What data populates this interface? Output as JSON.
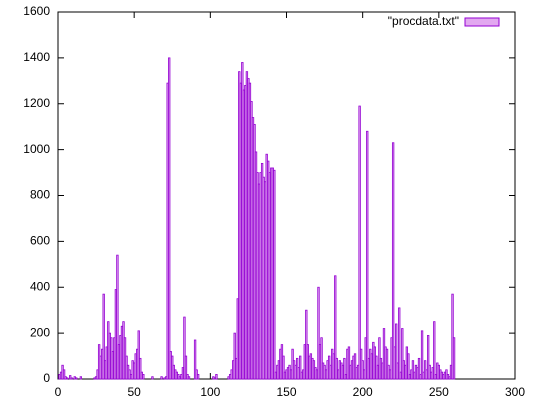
{
  "chart_data": {
    "type": "bar",
    "series": [
      {
        "name": "\"procdata.txt\"",
        "color": "#9400d3",
        "fill": "#e2a8f0",
        "x": [
          1,
          2,
          3,
          4,
          5,
          6,
          7,
          8,
          9,
          10,
          11,
          12,
          13,
          14,
          15,
          16,
          17,
          18,
          19,
          20,
          21,
          22,
          23,
          24,
          25,
          26,
          27,
          28,
          29,
          30,
          31,
          32,
          33,
          34,
          35,
          36,
          37,
          38,
          39,
          40,
          41,
          42,
          43,
          44,
          45,
          46,
          47,
          48,
          49,
          50,
          51,
          52,
          53,
          54,
          55,
          56,
          57,
          58,
          59,
          60,
          61,
          62,
          63,
          64,
          65,
          66,
          67,
          68,
          69,
          70,
          71,
          72,
          73,
          74,
          75,
          76,
          77,
          78,
          79,
          80,
          81,
          82,
          83,
          84,
          85,
          86,
          87,
          88,
          89,
          90,
          91,
          92,
          93,
          94,
          95,
          96,
          97,
          98,
          99,
          100,
          101,
          102,
          103,
          104,
          105,
          106,
          107,
          108,
          109,
          110,
          111,
          112,
          113,
          114,
          115,
          116,
          117,
          118,
          119,
          120,
          121,
          122,
          123,
          124,
          125,
          126,
          127,
          128,
          129,
          130,
          131,
          132,
          133,
          134,
          135,
          136,
          137,
          138,
          139,
          140,
          141,
          142,
          143,
          144,
          145,
          146,
          147,
          148,
          149,
          150,
          151,
          152,
          153,
          154,
          155,
          156,
          157,
          158,
          159,
          160,
          161,
          162,
          163,
          164,
          165,
          166,
          167,
          168,
          169,
          170,
          171,
          172,
          173,
          174,
          175,
          176,
          177,
          178,
          179,
          180,
          181,
          182,
          183,
          184,
          185,
          186,
          187,
          188,
          189,
          190,
          191,
          192,
          193,
          194,
          195,
          196,
          197,
          198,
          199,
          200,
          201,
          202,
          203,
          204,
          205,
          206,
          207,
          208,
          209,
          210,
          211,
          212,
          213,
          214,
          215,
          216,
          217,
          218,
          219,
          220,
          221,
          222,
          223,
          224,
          225,
          226,
          227,
          228,
          229,
          230,
          231,
          232,
          233,
          234,
          235,
          236,
          237,
          238,
          239,
          240,
          241,
          242,
          243,
          244,
          245,
          246,
          247,
          248,
          249,
          250,
          251,
          252,
          253,
          254,
          255,
          256,
          257,
          258,
          259,
          260
        ],
        "values": [
          20,
          30,
          60,
          40,
          10,
          5,
          0,
          15,
          5,
          0,
          10,
          5,
          0,
          0,
          10,
          0,
          0,
          0,
          0,
          0,
          0,
          0,
          0,
          5,
          10,
          40,
          150,
          100,
          130,
          370,
          80,
          140,
          250,
          200,
          180,
          120,
          180,
          390,
          540,
          150,
          190,
          230,
          250,
          180,
          100,
          60,
          40,
          20,
          80,
          70,
          110,
          130,
          210,
          90,
          30,
          20,
          0,
          0,
          0,
          0,
          0,
          10,
          0,
          0,
          0,
          0,
          0,
          10,
          0,
          5,
          10,
          1290,
          1400,
          120,
          100,
          60,
          40,
          30,
          20,
          10,
          20,
          50,
          270,
          100,
          20,
          10,
          0,
          0,
          0,
          170,
          40,
          20,
          0,
          0,
          0,
          0,
          0,
          0,
          0,
          0,
          0,
          10,
          5,
          20,
          0,
          0,
          0,
          0,
          0,
          0,
          0,
          10,
          20,
          40,
          80,
          200,
          90,
          350,
          1340,
          1290,
          1380,
          1260,
          1280,
          1340,
          1310,
          1290,
          1210,
          1140,
          1110,
          990,
          900,
          850,
          900,
          940,
          880,
          860,
          980,
          950,
          900,
          920,
          920,
          910,
          30,
          60,
          80,
          130,
          150,
          100,
          30,
          40,
          50,
          60,
          40,
          130,
          80,
          60,
          90,
          50,
          100,
          30,
          40,
          150,
          300,
          150,
          100,
          110,
          90,
          80,
          50,
          40,
          400,
          150,
          180,
          70,
          60,
          40,
          80,
          100,
          60,
          130,
          110,
          450,
          90,
          40,
          80,
          70,
          60,
          90,
          20,
          130,
          140,
          60,
          80,
          100,
          110,
          50,
          60,
          1190,
          130,
          80,
          40,
          180,
          1080,
          90,
          130,
          110,
          160,
          140,
          100,
          60,
          180,
          90,
          70,
          220,
          140,
          130,
          60,
          40,
          180,
          1030,
          140,
          240,
          70,
          310,
          30,
          220,
          80,
          60,
          140,
          110,
          20,
          40,
          80,
          30,
          60,
          50,
          90,
          20,
          210,
          30,
          80,
          40,
          190,
          60,
          30,
          50,
          250,
          20,
          70,
          60,
          40,
          30,
          20,
          30,
          40,
          20,
          10,
          60,
          370,
          180
        ]
      }
    ],
    "xlim": [
      0,
      300
    ],
    "xticks": [
      0,
      50,
      100,
      150,
      200,
      250,
      300
    ],
    "ylim": [
      0,
      1600
    ],
    "yticks": [
      0,
      200,
      400,
      600,
      800,
      1000,
      1200,
      1400,
      1600
    ],
    "legend": "top-right"
  }
}
